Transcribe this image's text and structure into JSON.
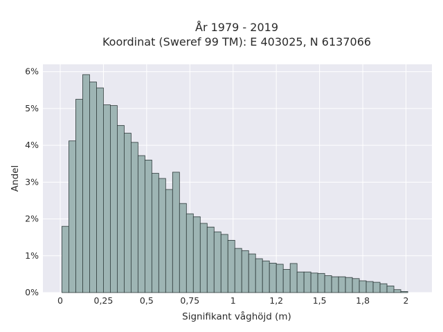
{
  "chart_data": {
    "type": "bar",
    "title_line1": "År 1979 - 2019",
    "title_line2": "Koordinat (Sweref 99 TM): E 403025, N 6137066",
    "xlabel": "Signifikant våghöjd (m)",
    "ylabel": "Andel",
    "xlim": [
      -0.1,
      2.15
    ],
    "ylim": [
      0,
      6.2
    ],
    "x_ticks": [
      0,
      0.25,
      0.5,
      0.75,
      1,
      1.25,
      1.5,
      1.75,
      2
    ],
    "x_tick_labels": [
      "0",
      "0,25",
      "0,5",
      "0,75",
      "1",
      "1,2",
      "1,5",
      "1,8",
      "2"
    ],
    "y_ticks": [
      0,
      1,
      2,
      3,
      4,
      5,
      6
    ],
    "y_tick_labels": [
      "0%",
      "1%",
      "2%",
      "3%",
      "4%",
      "5%",
      "6%"
    ],
    "grid": true,
    "bin_start": 0.01,
    "bin_width": 0.04,
    "values": [
      1.8,
      4.12,
      5.25,
      5.92,
      5.72,
      5.56,
      5.1,
      5.08,
      4.54,
      4.33,
      4.08,
      3.72,
      3.6,
      3.24,
      3.1,
      2.8,
      3.27,
      2.42,
      2.14,
      2.06,
      1.88,
      1.78,
      1.65,
      1.58,
      1.42,
      1.2,
      1.14,
      1.05,
      0.92,
      0.86,
      0.8,
      0.77,
      0.63,
      0.79,
      0.56,
      0.56,
      0.53,
      0.52,
      0.46,
      0.43,
      0.43,
      0.41,
      0.38,
      0.32,
      0.3,
      0.28,
      0.24,
      0.18,
      0.08,
      0.03
    ],
    "colors": {
      "bar_fill": "#9eb5b4",
      "bar_stroke": "#2e3a3a",
      "plot_bg": "#e9e9f1",
      "grid": "#ffffff"
    }
  }
}
